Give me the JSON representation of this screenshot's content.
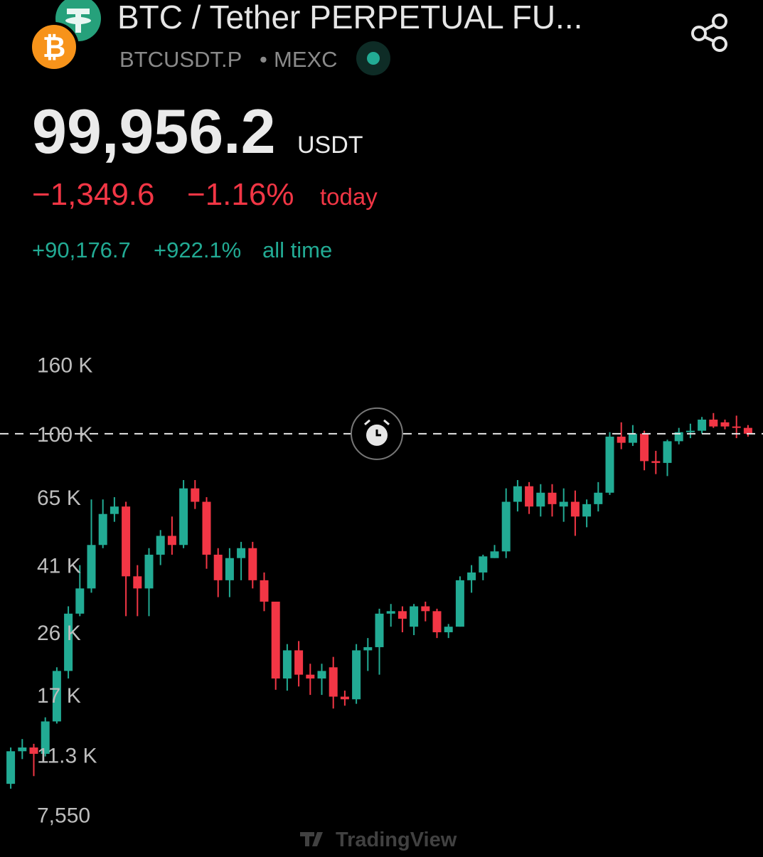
{
  "header": {
    "title": "BTC / Tether PERPETUAL FU...",
    "symbol": "BTCUSDT.P",
    "exchange": "MEXC",
    "price": "99,956.2",
    "currency": "USDT",
    "change_today": "−1,349.6",
    "change_today_pct": "−1.16%",
    "today": "today",
    "change_all": "+90,176.7",
    "change_all_pct": "+922.1%",
    "all_time": "all time"
  },
  "chart_data": {
    "type": "candlestick",
    "log_scale": true,
    "grid": false,
    "up_color": "#22ab94",
    "down_color": "#f23645",
    "ylim": [
      5800,
      187000
    ],
    "yticks": [
      {
        "value": 160000,
        "label": "160 K"
      },
      {
        "value": 100000,
        "label": "100 K"
      },
      {
        "value": 65000,
        "label": "65 K"
      },
      {
        "value": 41000,
        "label": "41 K"
      },
      {
        "value": 26000,
        "label": "26 K"
      },
      {
        "value": 17000,
        "label": "17 K"
      },
      {
        "value": 11300,
        "label": "11.3 K"
      },
      {
        "value": 7550,
        "label": "7,550"
      }
    ],
    "open": [
      9300,
      11600,
      11900,
      11400,
      14200,
      20000,
      29500,
      35000,
      47000,
      58000,
      61000,
      38000,
      35000,
      44000,
      50000,
      47000,
      69000,
      63000,
      44000,
      37000,
      43000,
      46000,
      37000,
      32000,
      19000,
      23000,
      19500,
      19000,
      20500,
      16800,
      16500,
      23000,
      23500,
      29500,
      30000,
      27000,
      31000,
      30000,
      26000,
      27000,
      37000,
      39000,
      43000,
      45000,
      63000,
      70000,
      61000,
      67000,
      61000,
      63000,
      57000,
      62000,
      67000,
      98000,
      94000,
      100000,
      83000,
      82000,
      95000,
      101000,
      102000,
      110000,
      108000,
      105000,
      104000
    ],
    "high": [
      11900,
      12600,
      12200,
      14600,
      20500,
      31000,
      41000,
      64000,
      64000,
      65000,
      63000,
      41000,
      46000,
      52000,
      57000,
      73000,
      73000,
      65000,
      46000,
      46000,
      48000,
      48000,
      39000,
      32000,
      24000,
      24500,
      21000,
      21000,
      22000,
      17500,
      24000,
      25000,
      30500,
      31500,
      31000,
      31500,
      32000,
      30500,
      27500,
      38000,
      41000,
      44000,
      47000,
      69000,
      73000,
      72000,
      71000,
      71000,
      69000,
      68000,
      64000,
      72000,
      101000,
      108000,
      106000,
      102000,
      89000,
      96000,
      104000,
      107000,
      112000,
      115000,
      110000,
      113000,
      106000
    ],
    "low": [
      9000,
      11000,
      9800,
      11200,
      14000,
      19000,
      29000,
      34000,
      46000,
      55000,
      29000,
      29000,
      29000,
      41000,
      44000,
      46000,
      60000,
      40000,
      33000,
      33000,
      37000,
      35000,
      30000,
      17600,
      17500,
      18000,
      17000,
      17000,
      15500,
      15800,
      16000,
      20000,
      19500,
      27000,
      26000,
      25500,
      28000,
      25000,
      25000,
      27000,
      34000,
      37000,
      43000,
      43000,
      59000,
      58000,
      57000,
      57000,
      55000,
      50000,
      53000,
      59000,
      66000,
      90000,
      92000,
      78000,
      76000,
      75000,
      93000,
      97000,
      100000,
      104000,
      103000,
      97000,
      98000
    ],
    "close": [
      11600,
      11900,
      11400,
      14200,
      20000,
      29500,
      35000,
      47000,
      58000,
      61000,
      38000,
      35000,
      44000,
      50000,
      47000,
      69000,
      63000,
      44000,
      37000,
      43000,
      46000,
      37000,
      32000,
      19000,
      23000,
      19500,
      19000,
      20000,
      16800,
      16500,
      23000,
      23500,
      29500,
      30000,
      28500,
      31000,
      30000,
      26000,
      27000,
      37000,
      39000,
      43500,
      45000,
      63000,
      70000,
      61000,
      67000,
      62000,
      63000,
      57000,
      62000,
      67000,
      98000,
      94000,
      100000,
      83000,
      82000,
      95000,
      101000,
      102000,
      110000,
      105000,
      105000,
      104000,
      99956.2
    ]
  },
  "footer": {
    "watermark": "TradingView"
  }
}
